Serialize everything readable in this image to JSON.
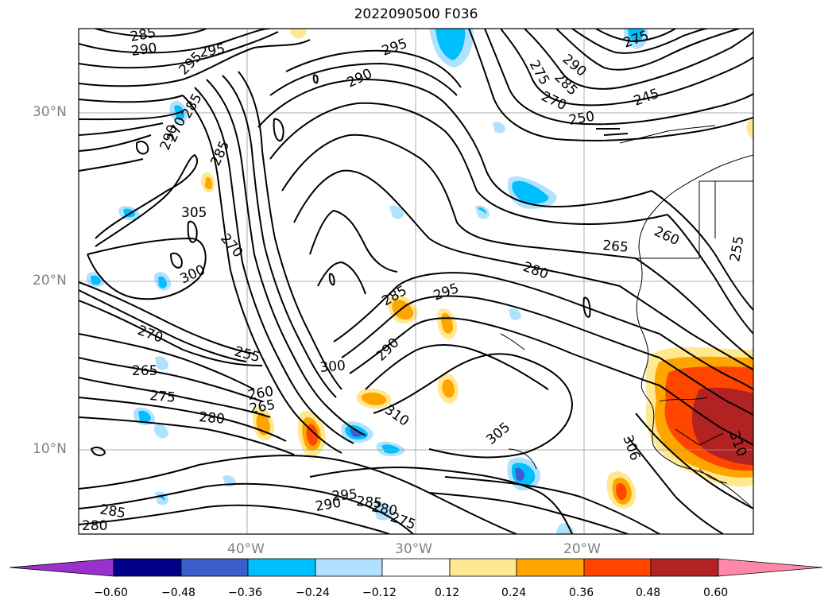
{
  "title": "2022090500 F036",
  "axes": {
    "lat_labels": [
      "30°N",
      "20°N",
      "10°N"
    ],
    "lon_labels": [
      "40°W",
      "30°W",
      "20°W"
    ]
  },
  "contour_labels": [
    "285",
    "290",
    "295",
    "295",
    "290",
    "295",
    "290",
    "285",
    "275",
    "270",
    "250",
    "245",
    "275",
    "285",
    "270",
    "285",
    "290",
    "305",
    "270",
    "300",
    "270",
    "265",
    "275",
    "280",
    "260",
    "265",
    "255",
    "300",
    "290",
    "285",
    "295",
    "310",
    "305",
    "295",
    "290",
    "285",
    "280",
    "275",
    "285",
    "280",
    "265",
    "260",
    "280",
    "255",
    "306",
    "310"
  ],
  "colorbar": {
    "ticks": [
      "−0.60",
      "−0.48",
      "−0.36",
      "−0.24",
      "−0.12",
      "0.12",
      "0.24",
      "0.36",
      "0.48",
      "0.60"
    ],
    "colors": [
      "#9932cc",
      "#00008b",
      "#3a5fcd",
      "#00bfff",
      "#b0e2ff",
      "#ffffff",
      "#ffe88f",
      "#ffa500",
      "#ff4500",
      "#b22222",
      "#ff88aa"
    ]
  }
}
